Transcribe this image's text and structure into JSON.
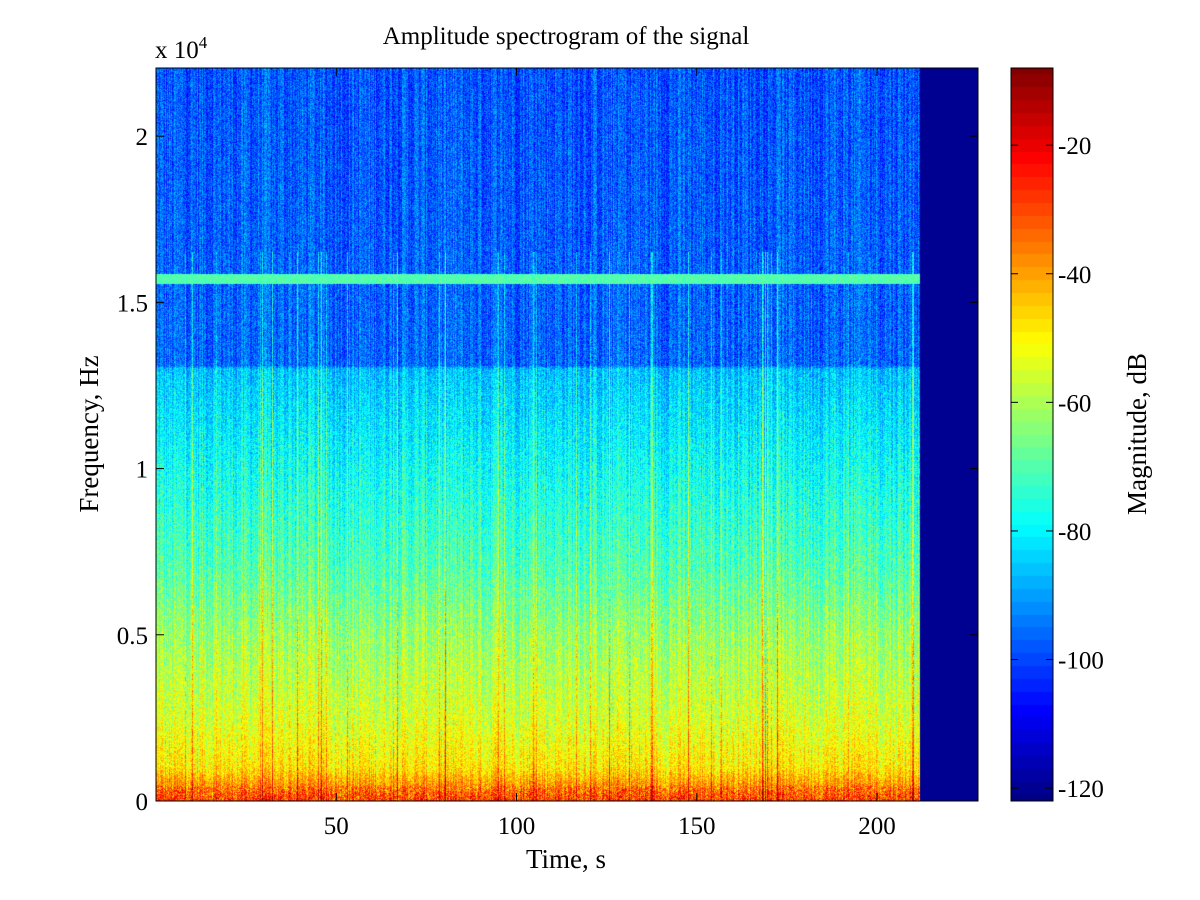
{
  "chart_data": {
    "type": "heatmap",
    "title": "Amplitude spectrogram of the signal",
    "xlabel": "Time, s",
    "ylabel": "Frequency, Hz",
    "y_scale_label": "x 10",
    "y_scale_exponent": "4",
    "xlim": [
      0,
      228
    ],
    "ylim": [
      0,
      22050
    ],
    "x_ticks": [
      {
        "value": 50,
        "label": "50"
      },
      {
        "value": 100,
        "label": "100"
      },
      {
        "value": 150,
        "label": "150"
      },
      {
        "value": 200,
        "label": "200"
      }
    ],
    "y_ticks": [
      {
        "value": 0,
        "label": "0"
      },
      {
        "value": 5000,
        "label": "0.5"
      },
      {
        "value": 10000,
        "label": "1"
      },
      {
        "value": 15000,
        "label": "1.5"
      },
      {
        "value": 20000,
        "label": "2"
      }
    ],
    "colorbar": {
      "label": "Magnitude, dB",
      "range": [
        -122,
        -8
      ],
      "colormap": "jet",
      "ticks": [
        {
          "value": -20,
          "label": "-20"
        },
        {
          "value": -40,
          "label": "-40"
        },
        {
          "value": -60,
          "label": "-60"
        },
        {
          "value": -80,
          "label": "-80"
        },
        {
          "value": -100,
          "label": "-100"
        },
        {
          "value": -120,
          "label": "-120"
        }
      ]
    },
    "signal": {
      "start_time": 0,
      "end_time": 212,
      "empty_region_level_db": -120,
      "tone_frequency": 15700,
      "tone_level_db": -70,
      "level_profile": [
        {
          "frequency": 0,
          "level_db": -30
        },
        {
          "frequency": 300,
          "level_db": -35
        },
        {
          "frequency": 1000,
          "level_db": -48
        },
        {
          "frequency": 2500,
          "level_db": -55
        },
        {
          "frequency": 5000,
          "level_db": -62
        },
        {
          "frequency": 7000,
          "level_db": -70
        },
        {
          "frequency": 10000,
          "level_db": -78
        },
        {
          "frequency": 13000,
          "level_db": -86
        },
        {
          "frequency": 13100,
          "level_db": -96
        },
        {
          "frequency": 22050,
          "level_db": -98
        }
      ]
    }
  }
}
